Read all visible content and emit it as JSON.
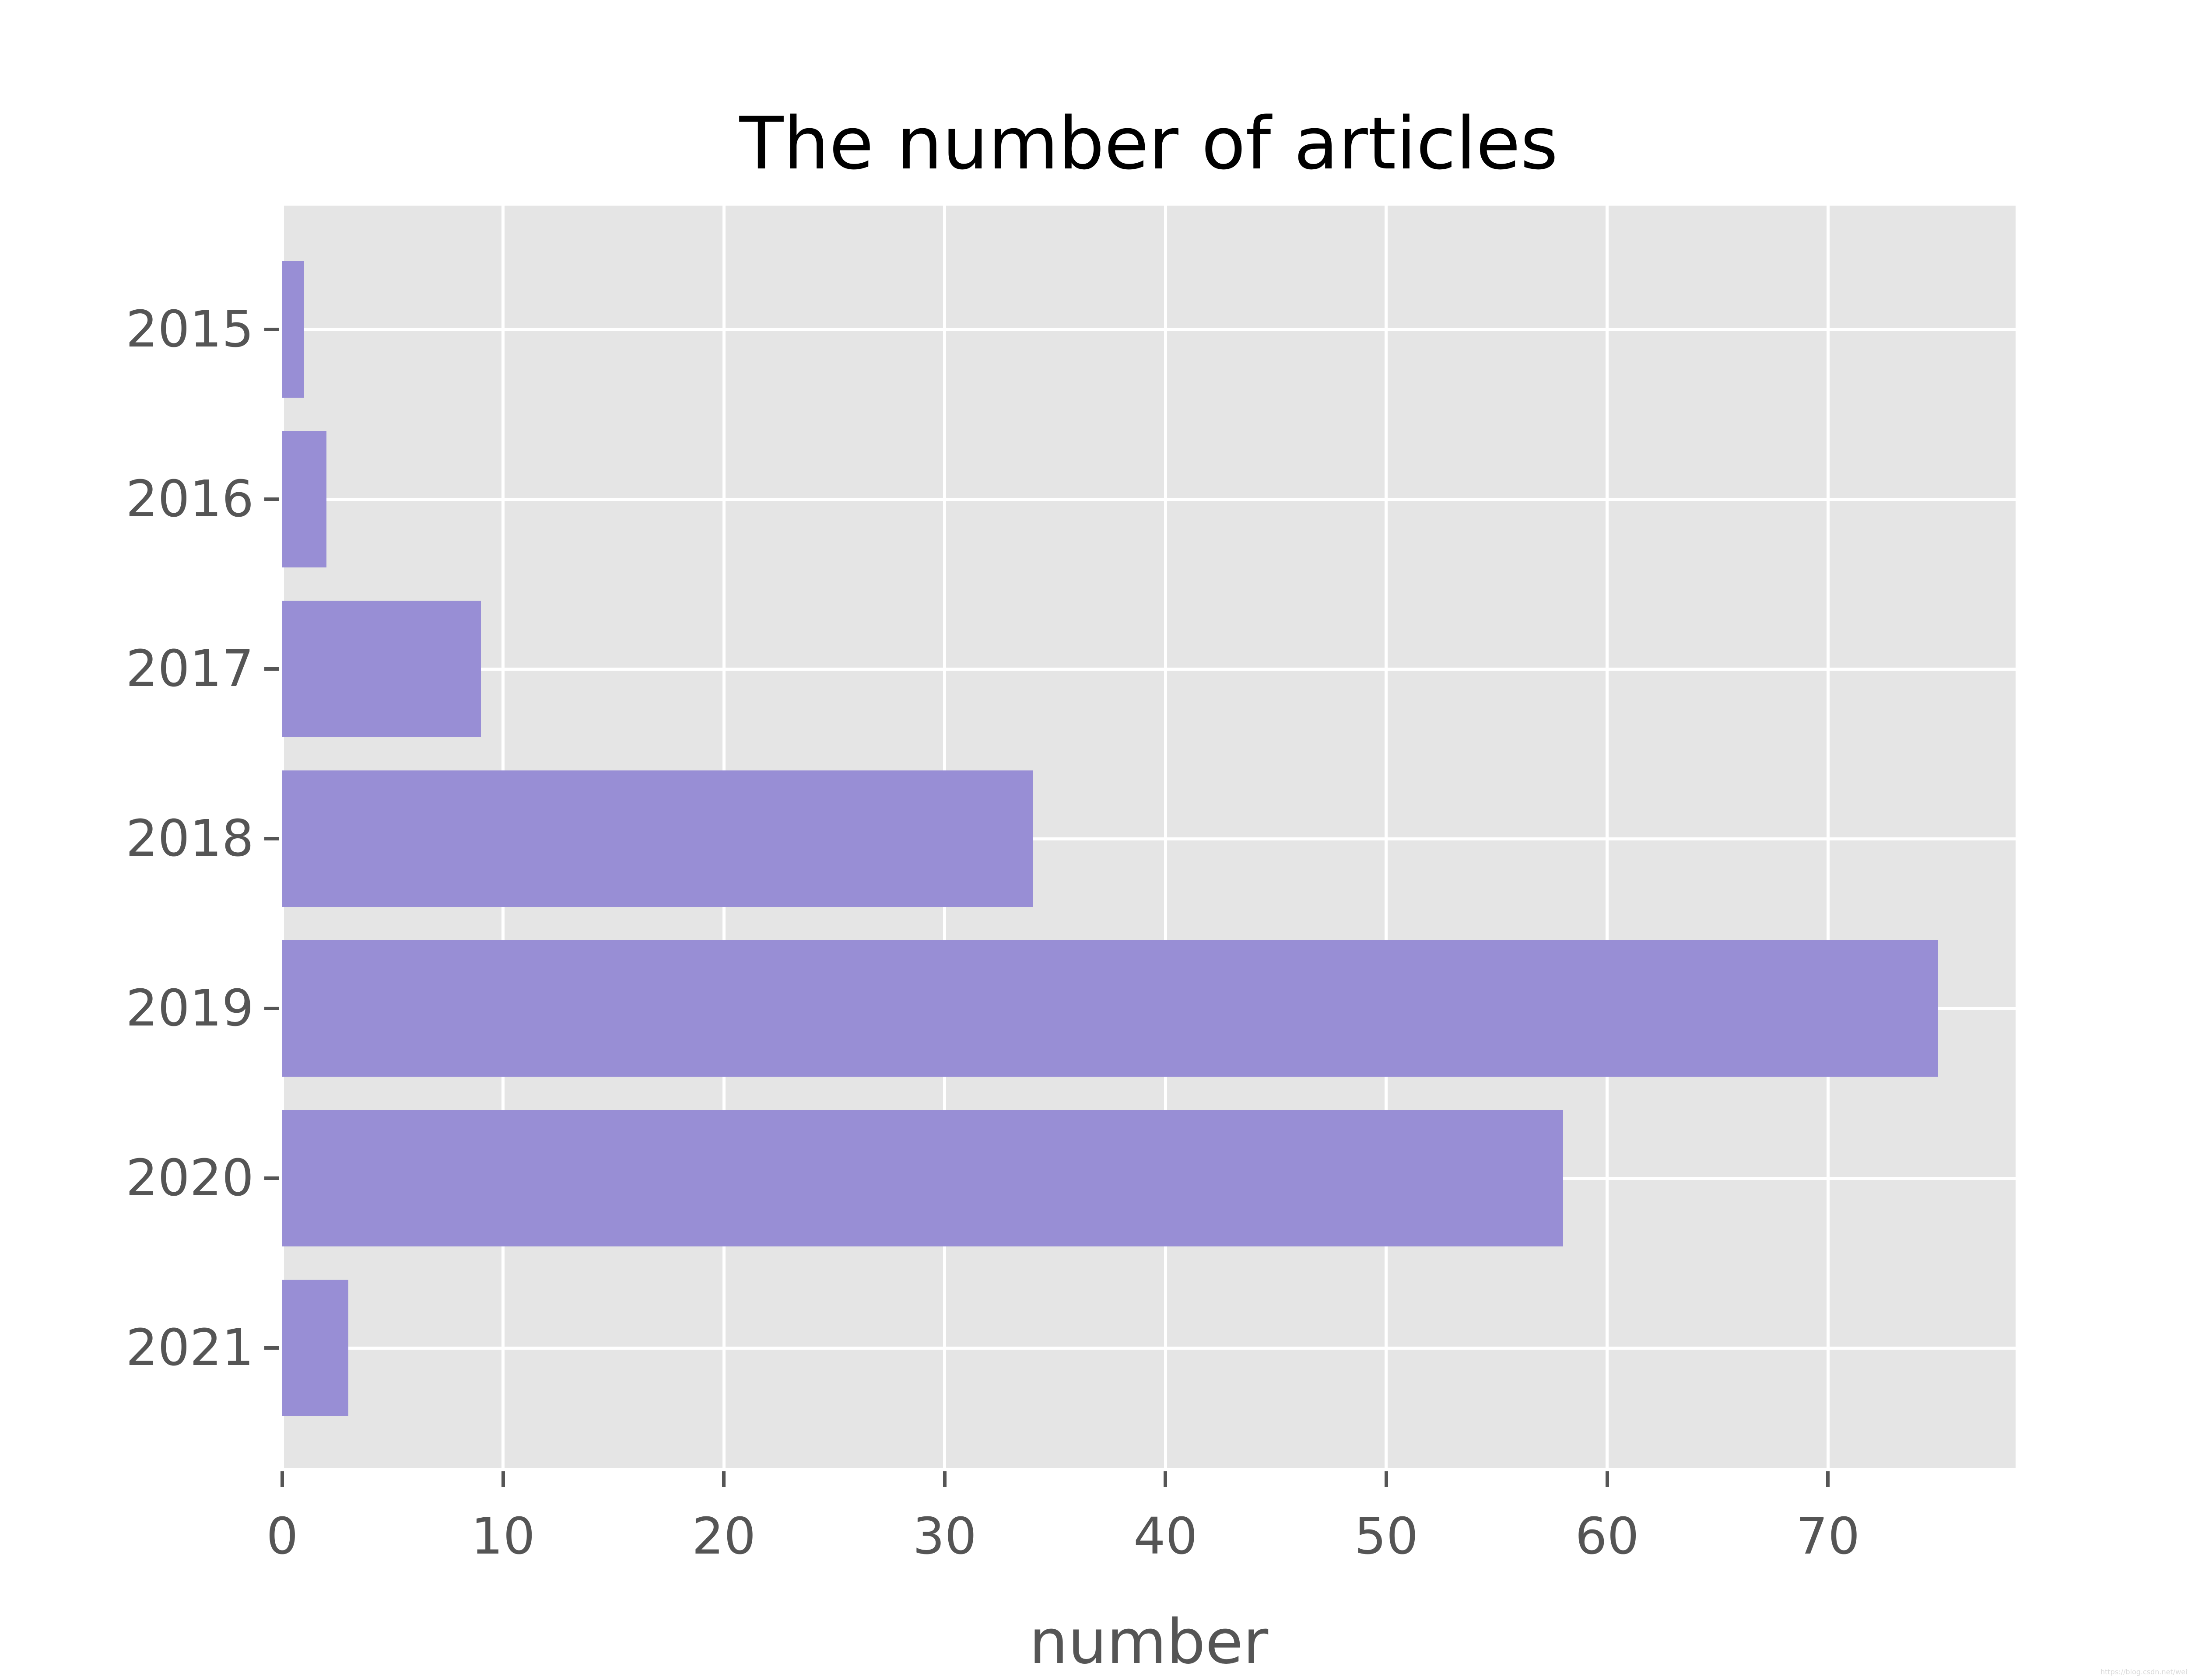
{
  "figure": {
    "background": "#ffffff"
  },
  "chart_data": {
    "type": "bar",
    "orientation": "horizontal",
    "title": "The number of articles",
    "xlabel": "number",
    "ylabel": "",
    "categories": [
      "2015",
      "2016",
      "2017",
      "2018",
      "2019",
      "2020",
      "2021"
    ],
    "values": [
      1,
      2,
      9,
      34,
      75,
      58,
      3
    ],
    "xticks": [
      0,
      10,
      20,
      30,
      40,
      50,
      60,
      70
    ],
    "xlim": [
      0,
      78.5
    ],
    "grid": true,
    "legend": false,
    "style": "ggplot",
    "colors": {
      "bar": "#988ED5",
      "plot_background": "#E5E5E5",
      "grid": "#FFFFFF",
      "tick_text": "#555555",
      "title_text": "#000000",
      "watermark_text": "#d9d9d9"
    }
  },
  "watermark": {
    "text": "https://blog.csdn.net/weixin_43095466"
  }
}
